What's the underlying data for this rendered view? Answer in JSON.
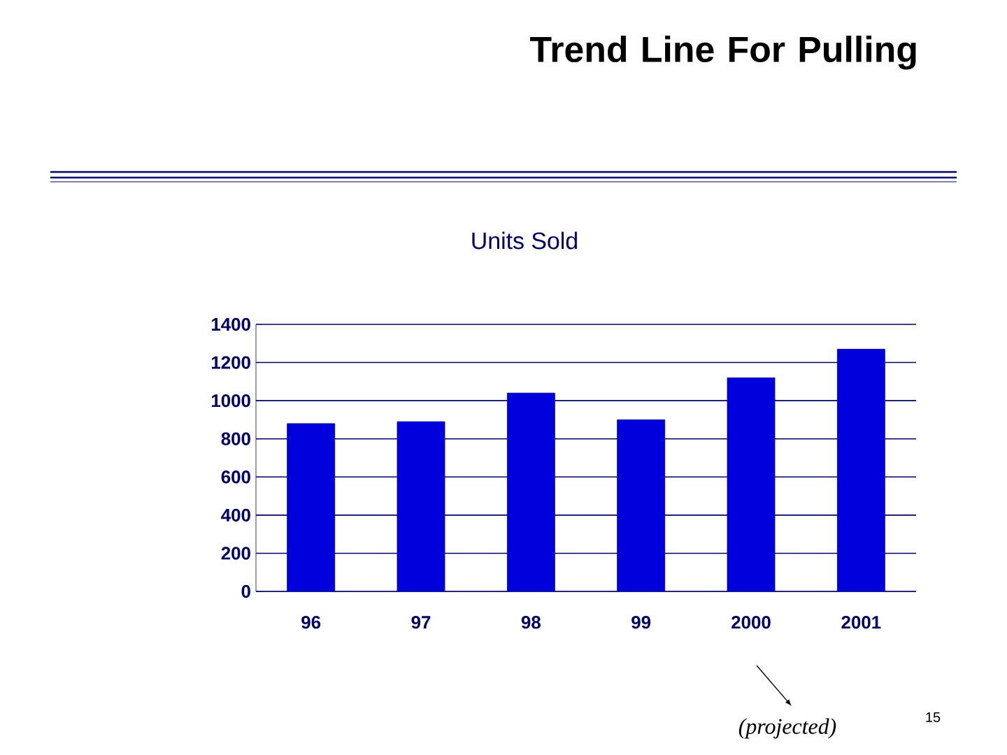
{
  "chart_data": {
    "type": "bar",
    "title": "Trend Line For Pulling",
    "subtitle": "Units Sold",
    "categories": [
      "96",
      "97",
      "98",
      "99",
      "2000",
      "2001"
    ],
    "values": [
      880,
      890,
      1040,
      900,
      1120,
      1270
    ],
    "color": "#0000dd",
    "ylim": [
      0,
      1400
    ],
    "yticks": [
      0,
      200,
      400,
      600,
      800,
      1000,
      1200,
      1400
    ],
    "grid": "y",
    "annotations": [
      "(projected)",
      "15"
    ]
  }
}
